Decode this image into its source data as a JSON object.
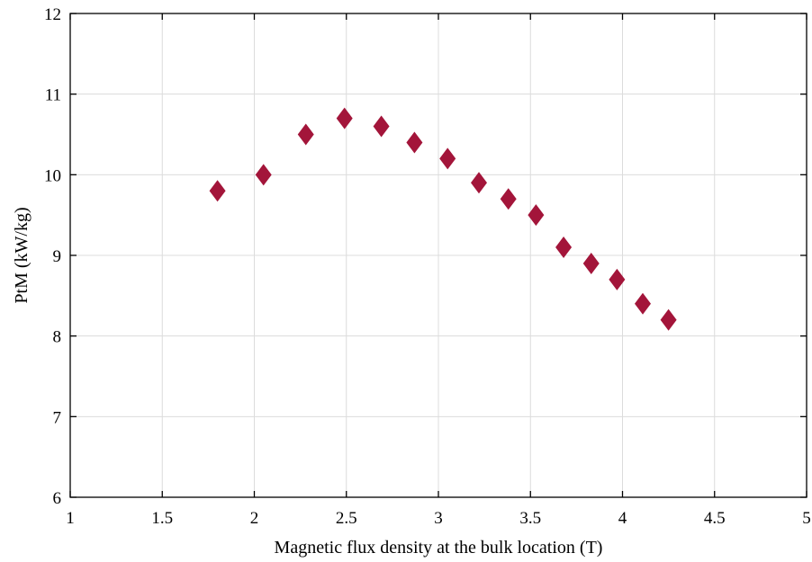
{
  "chart_data": {
    "type": "scatter",
    "xlabel": "Magnetic flux density at the bulk location (T)",
    "ylabel": "PtM (kW/kg)",
    "xlim": [
      1,
      5
    ],
    "ylim": [
      6,
      12
    ],
    "x_ticks": [
      "1",
      "1.5",
      "2",
      "2.5",
      "3",
      "3.5",
      "4",
      "4.5",
      "5"
    ],
    "y_ticks": [
      "6",
      "7",
      "8",
      "9",
      "10",
      "11",
      "12"
    ],
    "grid": true,
    "marker": "diamond",
    "marker_color": "#a3153a",
    "series": [
      {
        "x": [
          1.8,
          2.05,
          2.28,
          2.49,
          2.69,
          2.87,
          3.05,
          3.22,
          3.38,
          3.53,
          3.68,
          3.83,
          3.97,
          4.11,
          4.25
        ],
        "y": [
          9.8,
          10.0,
          10.5,
          10.7,
          10.6,
          10.4,
          10.2,
          9.9,
          9.7,
          9.5,
          9.1,
          8.9,
          8.7,
          8.4,
          8.2
        ]
      }
    ]
  }
}
